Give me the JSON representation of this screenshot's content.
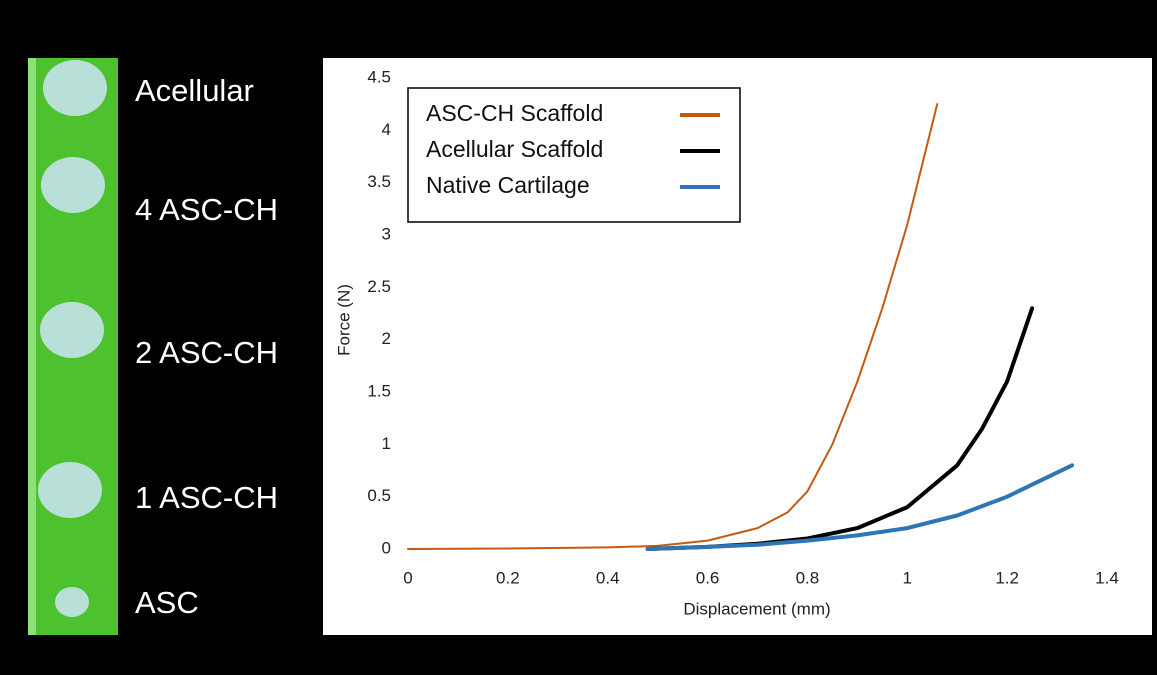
{
  "sample_labels": [
    "Acellular",
    "4 ASC-CH",
    "2 ASC-CH",
    "1 ASC-CH",
    "ASC"
  ],
  "chart_data": {
    "type": "line",
    "xlabel": "Displacement (mm)",
    "ylabel": "Force (N)",
    "xlim": [
      0,
      1.4
    ],
    "xticks": [
      0,
      0.2,
      0.4,
      0.6,
      0.8,
      1,
      1.2,
      1.4
    ],
    "ylim": [
      0,
      4.5
    ],
    "yticks": [
      0,
      0.5,
      1,
      1.5,
      2,
      2.5,
      3,
      3.5,
      4,
      4.5
    ],
    "grid": false,
    "legend": "upper left",
    "series": [
      {
        "name": "ASC-CH Scaffold",
        "color": "#c55a11",
        "width": 2,
        "x": [
          0,
          0.2,
          0.4,
          0.5,
          0.6,
          0.7,
          0.76,
          0.8,
          0.85,
          0.9,
          0.95,
          1.0,
          1.06
        ],
        "values": [
          0,
          0.005,
          0.015,
          0.03,
          0.08,
          0.2,
          0.35,
          0.55,
          1.0,
          1.6,
          2.3,
          3.1,
          4.25
        ]
      },
      {
        "name": "Acellular Scaffold",
        "color": "#000000",
        "width": 4,
        "x": [
          0.48,
          0.6,
          0.7,
          0.8,
          0.9,
          1.0,
          1.1,
          1.15,
          1.2,
          1.25
        ],
        "values": [
          0,
          0.02,
          0.05,
          0.1,
          0.2,
          0.4,
          0.8,
          1.15,
          1.6,
          2.3
        ]
      },
      {
        "name": "Native Cartilage",
        "color": "#2e75b6",
        "width": 4,
        "x": [
          0.48,
          0.6,
          0.7,
          0.8,
          0.9,
          1.0,
          1.1,
          1.2,
          1.33
        ],
        "values": [
          0,
          0.02,
          0.04,
          0.08,
          0.13,
          0.2,
          0.32,
          0.5,
          0.8
        ]
      }
    ]
  }
}
